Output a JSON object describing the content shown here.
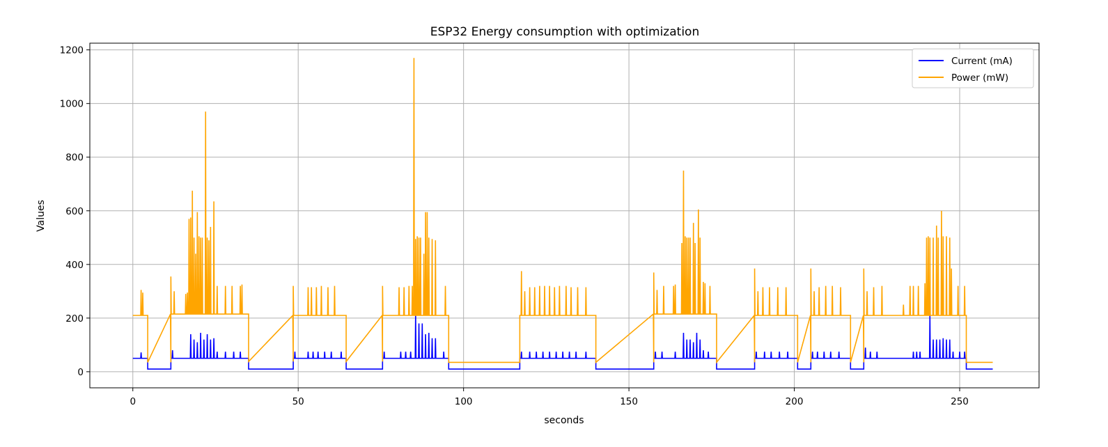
{
  "chart_data": {
    "type": "line",
    "title": "ESP32 Energy consumption with optimization",
    "xlabel": "seconds",
    "ylabel": "Values",
    "xlim": [
      -13,
      274
    ],
    "ylim": [
      -60,
      1225
    ],
    "xticks": [
      0,
      50,
      100,
      150,
      200,
      250
    ],
    "yticks": [
      0,
      200,
      400,
      600,
      800,
      1000,
      1200
    ],
    "grid": true,
    "legend_position": "top-right",
    "segments": [
      {
        "start": 0,
        "end": 4.5,
        "current": 50,
        "power": 210
      },
      {
        "start": 4.5,
        "end": 11.5,
        "current": 10,
        "power": 35
      },
      {
        "start": 11.5,
        "end": 35,
        "current": 50,
        "power": 215
      },
      {
        "start": 35,
        "end": 48.5,
        "current": 10,
        "power": 38
      },
      {
        "start": 48.5,
        "end": 64.5,
        "current": 50,
        "power": 210
      },
      {
        "start": 64.5,
        "end": 75.5,
        "current": 10,
        "power": 38
      },
      {
        "start": 75.5,
        "end": 95.5,
        "current": 50,
        "power": 210
      },
      {
        "start": 95.5,
        "end": 117,
        "current": 10,
        "power": 35
      },
      {
        "start": 117,
        "end": 140,
        "current": 50,
        "power": 210
      },
      {
        "start": 140,
        "end": 157.5,
        "current": 10,
        "power": 35
      },
      {
        "start": 157.5,
        "end": 176.5,
        "current": 50,
        "power": 215
      },
      {
        "start": 176.5,
        "end": 188,
        "current": 10,
        "power": 35
      },
      {
        "start": 188,
        "end": 201,
        "current": 50,
        "power": 210
      },
      {
        "start": 201,
        "end": 205,
        "current": 10,
        "power": 35
      },
      {
        "start": 205,
        "end": 217,
        "current": 50,
        "power": 210
      },
      {
        "start": 217,
        "end": 221,
        "current": 10,
        "power": 35
      },
      {
        "start": 221,
        "end": 252,
        "current": 50,
        "power": 210
      },
      {
        "start": 252,
        "end": 260,
        "current": 10,
        "power": 35
      }
    ],
    "series": [
      {
        "name": "Current (mA)",
        "color": "#0000ff",
        "key": "current",
        "spikes": [
          [
            2.5,
            72
          ],
          [
            12,
            80
          ],
          [
            17.5,
            140
          ],
          [
            18.5,
            120
          ],
          [
            19.5,
            110
          ],
          [
            20.5,
            145
          ],
          [
            21.5,
            120
          ],
          [
            22.5,
            140
          ],
          [
            23.5,
            120
          ],
          [
            24.5,
            125
          ],
          [
            25.5,
            75
          ],
          [
            28,
            75
          ],
          [
            30.5,
            75
          ],
          [
            32.5,
            75
          ],
          [
            49,
            75
          ],
          [
            53,
            75
          ],
          [
            54.5,
            75
          ],
          [
            56,
            75
          ],
          [
            58,
            75
          ],
          [
            60,
            75
          ],
          [
            63,
            75
          ],
          [
            76,
            75
          ],
          [
            81,
            75
          ],
          [
            82.5,
            75
          ],
          [
            84,
            75
          ],
          [
            85.5,
            220
          ],
          [
            86.5,
            180
          ],
          [
            87.5,
            180
          ],
          [
            88.5,
            140
          ],
          [
            89.5,
            145
          ],
          [
            90.5,
            125
          ],
          [
            91.5,
            125
          ],
          [
            94,
            75
          ],
          [
            117.5,
            75
          ],
          [
            120,
            75
          ],
          [
            122,
            75
          ],
          [
            124,
            75
          ],
          [
            126,
            75
          ],
          [
            128,
            75
          ],
          [
            130,
            75
          ],
          [
            132,
            75
          ],
          [
            134,
            75
          ],
          [
            137,
            75
          ],
          [
            158,
            75
          ],
          [
            160,
            75
          ],
          [
            164,
            75
          ],
          [
            166.5,
            145
          ],
          [
            167.5,
            120
          ],
          [
            168.5,
            120
          ],
          [
            169.5,
            110
          ],
          [
            170.5,
            145
          ],
          [
            171.5,
            120
          ],
          [
            172.5,
            80
          ],
          [
            174,
            75
          ],
          [
            188.5,
            75
          ],
          [
            191,
            75
          ],
          [
            193,
            75
          ],
          [
            195.5,
            75
          ],
          [
            198,
            75
          ],
          [
            205.5,
            75
          ],
          [
            207,
            75
          ],
          [
            209,
            75
          ],
          [
            211,
            75
          ],
          [
            213.5,
            75
          ],
          [
            221.5,
            90
          ],
          [
            223,
            75
          ],
          [
            225,
            75
          ],
          [
            236,
            75
          ],
          [
            237,
            75
          ],
          [
            238,
            75
          ],
          [
            241,
            215
          ],
          [
            242,
            120
          ],
          [
            243,
            120
          ],
          [
            244,
            120
          ],
          [
            245,
            125
          ],
          [
            246,
            120
          ],
          [
            247,
            120
          ],
          [
            248,
            75
          ],
          [
            250,
            75
          ],
          [
            251.5,
            75
          ]
        ]
      },
      {
        "name": "Power (mW)",
        "color": "#ffa500",
        "key": "power",
        "spikes": [
          [
            2.5,
            305
          ],
          [
            3,
            295
          ],
          [
            11.5,
            355
          ],
          [
            12.5,
            300
          ],
          [
            16,
            290
          ],
          [
            16.5,
            295
          ],
          [
            17,
            570
          ],
          [
            17.5,
            575
          ],
          [
            18,
            675
          ],
          [
            18.5,
            500
          ],
          [
            19,
            440
          ],
          [
            19.5,
            595
          ],
          [
            20,
            505
          ],
          [
            20.5,
            500
          ],
          [
            21,
            500
          ],
          [
            22,
            970
          ],
          [
            22.5,
            500
          ],
          [
            23,
            490
          ],
          [
            23.5,
            540
          ],
          [
            24.5,
            635
          ],
          [
            25.5,
            320
          ],
          [
            28,
            320
          ],
          [
            30,
            320
          ],
          [
            32.5,
            320
          ],
          [
            33,
            325
          ],
          [
            48.5,
            320
          ],
          [
            53,
            315
          ],
          [
            54,
            315
          ],
          [
            55.5,
            315
          ],
          [
            57,
            320
          ],
          [
            59,
            315
          ],
          [
            61,
            320
          ],
          [
            75.5,
            320
          ],
          [
            80.5,
            315
          ],
          [
            82,
            315
          ],
          [
            83.5,
            320
          ],
          [
            84.5,
            320
          ],
          [
            85,
            1170
          ],
          [
            85.5,
            495
          ],
          [
            86,
            505
          ],
          [
            86.5,
            500
          ],
          [
            87,
            500
          ],
          [
            88,
            440
          ],
          [
            88.5,
            595
          ],
          [
            89,
            595
          ],
          [
            89.5,
            500
          ],
          [
            90.5,
            495
          ],
          [
            91.5,
            490
          ],
          [
            94.5,
            320
          ],
          [
            117.5,
            375
          ],
          [
            118.5,
            300
          ],
          [
            120,
            315
          ],
          [
            121.5,
            315
          ],
          [
            123,
            320
          ],
          [
            124.5,
            320
          ],
          [
            126,
            320
          ],
          [
            127.5,
            315
          ],
          [
            129,
            320
          ],
          [
            131,
            320
          ],
          [
            132.5,
            315
          ],
          [
            134.5,
            315
          ],
          [
            137,
            315
          ],
          [
            157.5,
            370
          ],
          [
            158.5,
            305
          ],
          [
            160.5,
            320
          ],
          [
            163.5,
            320
          ],
          [
            164,
            325
          ],
          [
            166,
            480
          ],
          [
            166.5,
            750
          ],
          [
            167,
            505
          ],
          [
            167.5,
            500
          ],
          [
            168,
            500
          ],
          [
            168.5,
            500
          ],
          [
            169.5,
            555
          ],
          [
            170,
            480
          ],
          [
            171,
            605
          ],
          [
            171.5,
            500
          ],
          [
            172.5,
            335
          ],
          [
            173,
            330
          ],
          [
            174.5,
            320
          ],
          [
            188,
            385
          ],
          [
            189,
            300
          ],
          [
            190.5,
            315
          ],
          [
            192.5,
            315
          ],
          [
            195,
            315
          ],
          [
            197.5,
            315
          ],
          [
            205,
            385
          ],
          [
            206,
            300
          ],
          [
            207.5,
            315
          ],
          [
            209.5,
            320
          ],
          [
            211.5,
            320
          ],
          [
            214,
            315
          ],
          [
            221,
            385
          ],
          [
            222,
            300
          ],
          [
            224,
            315
          ],
          [
            226.5,
            320
          ],
          [
            233,
            250
          ],
          [
            235,
            320
          ],
          [
            236,
            320
          ],
          [
            237.5,
            320
          ],
          [
            239.5,
            330
          ],
          [
            240,
            500
          ],
          [
            240.5,
            505
          ],
          [
            241,
            500
          ],
          [
            242,
            500
          ],
          [
            243,
            545
          ],
          [
            243.5,
            500
          ],
          [
            244.5,
            600
          ],
          [
            245,
            505
          ],
          [
            246,
            505
          ],
          [
            247,
            500
          ],
          [
            247.5,
            385
          ],
          [
            249.5,
            320
          ],
          [
            251.5,
            320
          ]
        ]
      }
    ]
  }
}
